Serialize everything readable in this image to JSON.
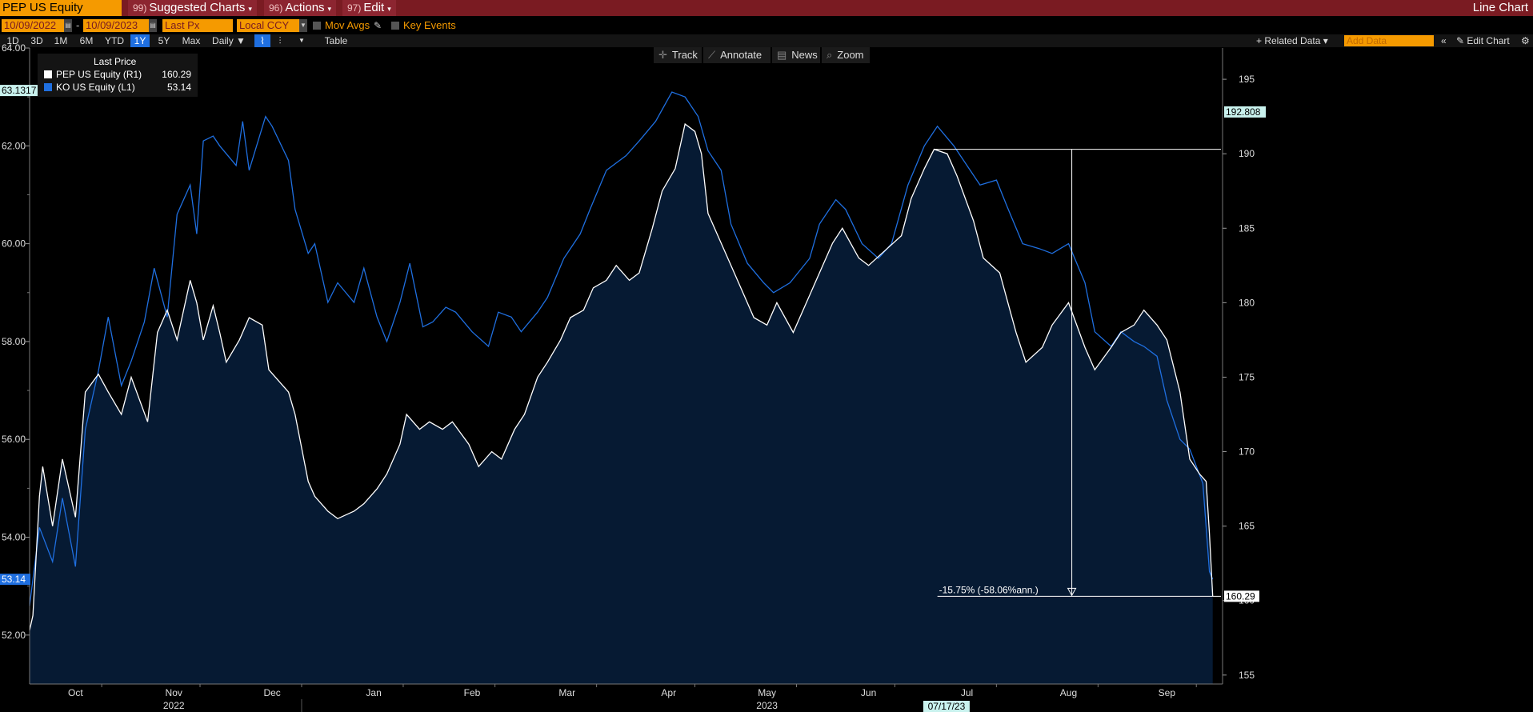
{
  "header": {
    "ticker": "PEP US Equity",
    "menus": [
      {
        "num": "99)",
        "label": "Suggested Charts"
      },
      {
        "num": "96)",
        "label": "Actions"
      },
      {
        "num": "97)",
        "label": "Edit"
      }
    ],
    "title": "Line Chart"
  },
  "controls": {
    "start_date": "10/09/2022",
    "end_date": "10/09/2023",
    "date_separator": "-",
    "field": "Last Px",
    "currency": "Local CCY",
    "mov_avgs": "Mov Avgs",
    "key_events": "Key Events",
    "periods": [
      "1D",
      "3D",
      "1M",
      "6M",
      "YTD",
      "1Y",
      "5Y",
      "Max"
    ],
    "active_period": "1Y",
    "frequency": "Daily ▼",
    "table": "Table",
    "related_data": "+ Related Data ▾",
    "add_data_placeholder": "Add Data",
    "edit_chart": "Edit Chart"
  },
  "tools": [
    "Track",
    "Annotate",
    "News",
    "Zoom"
  ],
  "legend": {
    "header": "Last Price",
    "entries": [
      {
        "name": "PEP US Equity  (R1)",
        "value": "160.29",
        "color": "#ffffff"
      },
      {
        "name": "KO US Equity  (L1)",
        "value": "53.14",
        "color": "#1f6fe0"
      }
    ]
  },
  "chart_data": {
    "type": "line",
    "colors": {
      "pep": "#ffffff",
      "ko": "#1f6fe0",
      "area": "#061a33",
      "background": "#000000"
    },
    "left_axis": {
      "ticks": [
        52.0,
        54.0,
        56.0,
        58.0,
        60.0,
        62.0,
        64.0
      ],
      "labels": [
        "52.00",
        "54.00",
        "56.00",
        "58.00",
        "60.00",
        "62.00",
        "64.00"
      ],
      "ylim": [
        51.0,
        64.0
      ]
    },
    "right_axis": {
      "ticks": [
        155,
        160,
        165,
        170,
        175,
        180,
        185,
        190,
        195
      ],
      "labels": [
        "155",
        "160",
        "165",
        "170",
        "175",
        "180",
        "185",
        "190",
        "195"
      ],
      "ylim": [
        154.4,
        197.1
      ]
    },
    "x_labels": [
      "Oct",
      "Nov",
      "Dec",
      "Jan",
      "Feb",
      "Mar",
      "Apr",
      "May",
      "Jun",
      "Jul",
      "Aug",
      "Sep"
    ],
    "year_labels": [
      "2022",
      "2023"
    ],
    "date_flag": "07/17/23",
    "left_high_label": "63.1317",
    "right_high_label": "192.808",
    "left_last_label": "53.14",
    "right_last_label": "160.29",
    "annotation": "-15.75% (-58.06%ann.)",
    "annotation_values": {
      "from": 190.3,
      "to": 160.29
    },
    "series": [
      {
        "name": "PEP US Equity",
        "axis": "right",
        "points": [
          [
            "2022-10-10",
            158.0
          ],
          [
            "2022-10-11",
            159.0
          ],
          [
            "2022-10-13",
            167.0
          ],
          [
            "2022-10-14",
            169.0
          ],
          [
            "2022-10-17",
            165.0
          ],
          [
            "2022-10-20",
            169.5
          ],
          [
            "2022-10-24",
            165.6
          ],
          [
            "2022-10-27",
            174.0
          ],
          [
            "2022-10-31",
            175.2
          ],
          [
            "2022-11-03",
            174.0
          ],
          [
            "2022-11-07",
            172.5
          ],
          [
            "2022-11-10",
            175.0
          ],
          [
            "2022-11-15",
            172.0
          ],
          [
            "2022-11-18",
            178.0
          ],
          [
            "2022-11-21",
            179.5
          ],
          [
            "2022-11-24",
            177.5
          ],
          [
            "2022-11-28",
            181.5
          ],
          [
            "2022-11-30",
            180.0
          ],
          [
            "2022-12-02",
            177.5
          ],
          [
            "2022-12-05",
            179.8
          ],
          [
            "2022-12-07",
            178.0
          ],
          [
            "2022-12-09",
            176.0
          ],
          [
            "2022-12-13",
            177.5
          ],
          [
            "2022-12-16",
            179.0
          ],
          [
            "2022-12-20",
            178.5
          ],
          [
            "2022-12-22",
            175.5
          ],
          [
            "2022-12-28",
            174.0
          ],
          [
            "2022-12-30",
            172.5
          ],
          [
            "2023-01-03",
            168.0
          ],
          [
            "2023-01-05",
            167.0
          ],
          [
            "2023-01-09",
            166.0
          ],
          [
            "2023-01-12",
            165.5
          ],
          [
            "2023-01-17",
            166.0
          ],
          [
            "2023-01-20",
            166.5
          ],
          [
            "2023-01-24",
            167.5
          ],
          [
            "2023-01-27",
            168.5
          ],
          [
            "2023-01-31",
            170.5
          ],
          [
            "2023-02-02",
            172.5
          ],
          [
            "2023-02-06",
            171.5
          ],
          [
            "2023-02-09",
            172.0
          ],
          [
            "2023-02-13",
            171.5
          ],
          [
            "2023-02-16",
            172.0
          ],
          [
            "2023-02-21",
            170.5
          ],
          [
            "2023-02-24",
            169.0
          ],
          [
            "2023-02-28",
            170.0
          ],
          [
            "2023-03-03",
            169.5
          ],
          [
            "2023-03-07",
            171.5
          ],
          [
            "2023-03-10",
            172.5
          ],
          [
            "2023-03-14",
            175.0
          ],
          [
            "2023-03-17",
            176.0
          ],
          [
            "2023-03-21",
            177.5
          ],
          [
            "2023-03-24",
            179.0
          ],
          [
            "2023-03-28",
            179.5
          ],
          [
            "2023-03-31",
            181.0
          ],
          [
            "2023-04-04",
            181.5
          ],
          [
            "2023-04-07",
            182.5
          ],
          [
            "2023-04-11",
            181.5
          ],
          [
            "2023-04-14",
            182.0
          ],
          [
            "2023-04-18",
            185.0
          ],
          [
            "2023-04-21",
            187.5
          ],
          [
            "2023-04-25",
            189.0
          ],
          [
            "2023-04-28",
            192.0
          ],
          [
            "2023-05-01",
            191.5
          ],
          [
            "2023-05-03",
            190.0
          ],
          [
            "2023-05-05",
            186.0
          ],
          [
            "2023-05-09",
            184.0
          ],
          [
            "2023-05-12",
            182.5
          ],
          [
            "2023-05-16",
            180.5
          ],
          [
            "2023-05-19",
            179.0
          ],
          [
            "2023-05-23",
            178.5
          ],
          [
            "2023-05-26",
            180.0
          ],
          [
            "2023-05-31",
            178.0
          ],
          [
            "2023-06-05",
            180.5
          ],
          [
            "2023-06-08",
            182.0
          ],
          [
            "2023-06-12",
            184.0
          ],
          [
            "2023-06-15",
            185.0
          ],
          [
            "2023-06-20",
            183.0
          ],
          [
            "2023-06-23",
            182.5
          ],
          [
            "2023-06-28",
            183.5
          ],
          [
            "2023-07-03",
            184.5
          ],
          [
            "2023-07-06",
            187.0
          ],
          [
            "2023-07-10",
            189.0
          ],
          [
            "2023-07-13",
            190.3
          ],
          [
            "2023-07-17",
            190.0
          ],
          [
            "2023-07-20",
            188.5
          ],
          [
            "2023-07-25",
            185.5
          ],
          [
            "2023-07-28",
            183.0
          ],
          [
            "2023-08-02",
            182.0
          ],
          [
            "2023-08-07",
            178.0
          ],
          [
            "2023-08-10",
            176.0
          ],
          [
            "2023-08-15",
            177.0
          ],
          [
            "2023-08-18",
            178.5
          ],
          [
            "2023-08-23",
            180.0
          ],
          [
            "2023-08-28",
            177.0
          ],
          [
            "2023-08-31",
            175.5
          ],
          [
            "2023-09-05",
            177.0
          ],
          [
            "2023-09-08",
            178.0
          ],
          [
            "2023-09-12",
            178.5
          ],
          [
            "2023-09-15",
            179.5
          ],
          [
            "2023-09-19",
            178.5
          ],
          [
            "2023-09-22",
            177.5
          ],
          [
            "2023-09-26",
            174.0
          ],
          [
            "2023-09-29",
            169.5
          ],
          [
            "2023-10-02",
            168.5
          ],
          [
            "2023-10-04",
            168.0
          ],
          [
            "2023-10-05",
            164.5
          ],
          [
            "2023-10-06",
            160.29
          ]
        ]
      },
      {
        "name": "KO US Equity",
        "axis": "left",
        "points": [
          [
            "2022-10-10",
            52.6
          ],
          [
            "2022-10-13",
            54.2
          ],
          [
            "2022-10-17",
            53.5
          ],
          [
            "2022-10-20",
            54.8
          ],
          [
            "2022-10-24",
            53.4
          ],
          [
            "2022-10-27",
            56.2
          ],
          [
            "2022-10-31",
            57.4
          ],
          [
            "2022-11-03",
            58.5
          ],
          [
            "2022-11-07",
            57.1
          ],
          [
            "2022-11-10",
            57.6
          ],
          [
            "2022-11-14",
            58.4
          ],
          [
            "2022-11-17",
            59.5
          ],
          [
            "2022-11-21",
            58.5
          ],
          [
            "2022-11-24",
            60.6
          ],
          [
            "2022-11-28",
            61.2
          ],
          [
            "2022-11-30",
            60.2
          ],
          [
            "2022-12-02",
            62.1
          ],
          [
            "2022-12-05",
            62.2
          ],
          [
            "2022-12-07",
            62.0
          ],
          [
            "2022-12-12",
            61.6
          ],
          [
            "2022-12-14",
            62.5
          ],
          [
            "2022-12-16",
            61.5
          ],
          [
            "2022-12-21",
            62.6
          ],
          [
            "2022-12-23",
            62.4
          ],
          [
            "2022-12-28",
            61.7
          ],
          [
            "2022-12-30",
            60.7
          ],
          [
            "2023-01-03",
            59.8
          ],
          [
            "2023-01-05",
            60.0
          ],
          [
            "2023-01-09",
            58.8
          ],
          [
            "2023-01-12",
            59.2
          ],
          [
            "2023-01-17",
            58.8
          ],
          [
            "2023-01-20",
            59.5
          ],
          [
            "2023-01-24",
            58.5
          ],
          [
            "2023-01-27",
            58.0
          ],
          [
            "2023-01-31",
            58.8
          ],
          [
            "2023-02-03",
            59.6
          ],
          [
            "2023-02-07",
            58.3
          ],
          [
            "2023-02-10",
            58.4
          ],
          [
            "2023-02-14",
            58.7
          ],
          [
            "2023-02-17",
            58.6
          ],
          [
            "2023-02-22",
            58.2
          ],
          [
            "2023-02-27",
            57.9
          ],
          [
            "2023-03-02",
            58.6
          ],
          [
            "2023-03-06",
            58.5
          ],
          [
            "2023-03-09",
            58.2
          ],
          [
            "2023-03-14",
            58.6
          ],
          [
            "2023-03-17",
            58.9
          ],
          [
            "2023-03-22",
            59.7
          ],
          [
            "2023-03-27",
            60.2
          ],
          [
            "2023-03-30",
            60.7
          ],
          [
            "2023-04-04",
            61.5
          ],
          [
            "2023-04-10",
            61.8
          ],
          [
            "2023-04-14",
            62.1
          ],
          [
            "2023-04-19",
            62.5
          ],
          [
            "2023-04-24",
            63.1
          ],
          [
            "2023-04-28",
            63.0
          ],
          [
            "2023-05-02",
            62.6
          ],
          [
            "2023-05-05",
            61.9
          ],
          [
            "2023-05-09",
            61.5
          ],
          [
            "2023-05-12",
            60.4
          ],
          [
            "2023-05-17",
            59.6
          ],
          [
            "2023-05-22",
            59.2
          ],
          [
            "2023-05-25",
            59.0
          ],
          [
            "2023-05-30",
            59.2
          ],
          [
            "2023-06-05",
            59.7
          ],
          [
            "2023-06-08",
            60.4
          ],
          [
            "2023-06-13",
            60.9
          ],
          [
            "2023-06-16",
            60.7
          ],
          [
            "2023-06-21",
            60.0
          ],
          [
            "2023-06-26",
            59.7
          ],
          [
            "2023-06-30",
            60.0
          ],
          [
            "2023-07-05",
            61.2
          ],
          [
            "2023-07-10",
            62.0
          ],
          [
            "2023-07-14",
            62.4
          ],
          [
            "2023-07-19",
            62.0
          ],
          [
            "2023-07-24",
            61.5
          ],
          [
            "2023-07-27",
            61.2
          ],
          [
            "2023-08-01",
            61.3
          ],
          [
            "2023-08-04",
            60.8
          ],
          [
            "2023-08-09",
            60.0
          ],
          [
            "2023-08-14",
            59.9
          ],
          [
            "2023-08-18",
            59.8
          ],
          [
            "2023-08-23",
            60.0
          ],
          [
            "2023-08-28",
            59.2
          ],
          [
            "2023-08-31",
            58.2
          ],
          [
            "2023-09-05",
            57.9
          ],
          [
            "2023-09-08",
            58.2
          ],
          [
            "2023-09-12",
            58.0
          ],
          [
            "2023-09-15",
            57.9
          ],
          [
            "2023-09-19",
            57.7
          ],
          [
            "2023-09-22",
            56.8
          ],
          [
            "2023-09-26",
            56.0
          ],
          [
            "2023-09-29",
            55.8
          ],
          [
            "2023-10-03",
            55.1
          ],
          [
            "2023-10-05",
            53.3
          ],
          [
            "2023-10-06",
            53.14
          ]
        ]
      }
    ]
  }
}
